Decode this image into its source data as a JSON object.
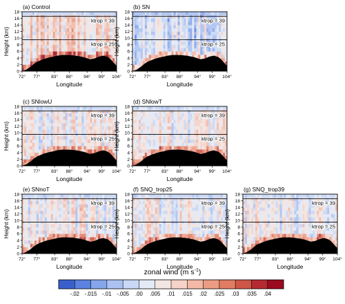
{
  "chart_data": {
    "type": "heatmap",
    "xlabel": "Longitude",
    "ylabel": "Height (km)",
    "x_ticks": [
      72,
      77,
      83,
      88,
      94,
      99,
      104
    ],
    "x_tick_labels": [
      "72°",
      "77°",
      "83°",
      "88°",
      "94°",
      "99°",
      "104°"
    ],
    "y_ticks": [
      0,
      2,
      4,
      6,
      8,
      10,
      12,
      14,
      16,
      18
    ],
    "y_tick_labels": [
      "0",
      "2",
      "4",
      "6",
      "8",
      "10",
      "12",
      "14",
      "16",
      "18"
    ],
    "xlim": [
      72,
      104
    ],
    "ylim": [
      0,
      18
    ],
    "ktrop_high": {
      "label": "ktrop = 39",
      "height_km": 16.6
    },
    "ktrop_low": {
      "label": "ktrop = 25",
      "height_km": 9.5
    },
    "terrain_km": {
      "lon": [
        72,
        73.5,
        75,
        76,
        77,
        78,
        79.5,
        81,
        82.5,
        84,
        85.5,
        87,
        88.5,
        90,
        91.5,
        93,
        94,
        95,
        96.5,
        98,
        99.5,
        101,
        102,
        103,
        104
      ],
      "height": [
        0,
        0.5,
        1.4,
        2.2,
        2.8,
        3.2,
        3.7,
        4.1,
        4.4,
        4.7,
        4.9,
        4.9,
        4.85,
        4.7,
        4.5,
        4.2,
        3.9,
        3.6,
        3.8,
        4.4,
        4.7,
        4.3,
        3.6,
        2.6,
        1.6
      ]
    },
    "panels": [
      {
        "label": "(a) Control",
        "background": "pale-red-blue-mix",
        "sign": 1
      },
      {
        "label": "(b) SN",
        "background": "mostly-blue",
        "sign": -1
      },
      {
        "label": "(c) SNlowU",
        "background": "mixed",
        "sign": 0
      },
      {
        "label": "(d) SNlowT",
        "background": "mixed",
        "sign": 0
      },
      {
        "label": "(e) SNnoT",
        "background": "mixed",
        "sign": 0
      },
      {
        "label": "(f) SNQ_trop25",
        "background": "mixed",
        "sign": 0
      },
      {
        "label": "(g) SNQ_trop39",
        "background": "mixed",
        "sign": 0
      }
    ],
    "colorbar": {
      "title": "zonal wind (m s",
      "title_sup": "-1",
      "title_end": ")",
      "levels": [
        "-.02",
        "-.015",
        "-.01",
        "-.005",
        ".00",
        ".005",
        ".01",
        ".015",
        ".02",
        ".025",
        ".03",
        ".035",
        ".04"
      ],
      "colors": [
        "#3a5fcd",
        "#5b82e0",
        "#86a6ec",
        "#aac2f2",
        "#c9d8f6",
        "#e3eaf6",
        "#f3e6e2",
        "#f6d3c8",
        "#f3b9a6",
        "#ec9c82",
        "#e07c62",
        "#cd5646",
        "#b42a30",
        "#9b0a1e"
      ]
    }
  }
}
